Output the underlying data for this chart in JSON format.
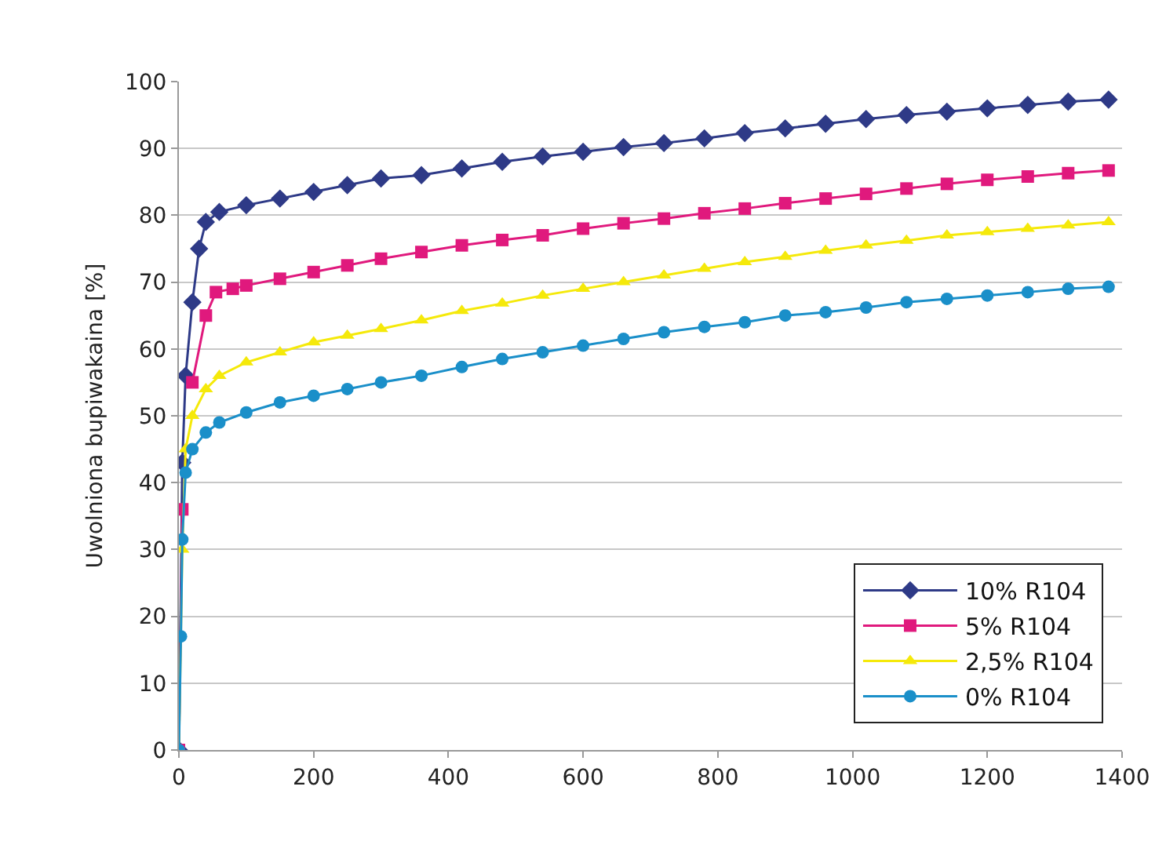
{
  "chart_data": {
    "type": "line",
    "ylabel": "Uwolniona bupiwakaina [%]",
    "xlim": [
      0,
      1400
    ],
    "xticks": [
      0,
      200,
      400,
      600,
      800,
      1000,
      1200,
      1400
    ],
    "ylim": [
      0,
      100
    ],
    "yticks": [
      0,
      10,
      20,
      30,
      40,
      50,
      60,
      70,
      80,
      90,
      100
    ],
    "grid": "y",
    "legend": "bottom right",
    "series": [
      {
        "name": "10% R104",
        "color": "#2e3a87",
        "marker": "diamond",
        "x": [
          0,
          5,
          10,
          20,
          30,
          40,
          60,
          100,
          150,
          200,
          250,
          300,
          360,
          420,
          480,
          540,
          600,
          660,
          720,
          780,
          840,
          900,
          960,
          1020,
          1080,
          1140,
          1200,
          1260,
          1320,
          1380
        ],
        "values": [
          0,
          43,
          56,
          67,
          75,
          79,
          80.5,
          81.5,
          82.5,
          83.5,
          84.5,
          85.5,
          86,
          87,
          88,
          88.8,
          89.5,
          90.2,
          90.8,
          91.5,
          92.3,
          93,
          93.7,
          94.4,
          95,
          95.5,
          96,
          96.5,
          97,
          97.3
        ]
      },
      {
        "name": "5% R104",
        "color": "#e0197d",
        "marker": "square",
        "x": [
          0,
          5,
          10,
          20,
          40,
          55,
          80,
          100,
          150,
          200,
          250,
          300,
          360,
          420,
          480,
          540,
          600,
          660,
          720,
          780,
          840,
          900,
          960,
          1020,
          1080,
          1140,
          1200,
          1260,
          1320,
          1380
        ],
        "values": [
          0,
          36,
          null,
          55,
          65,
          68.5,
          69,
          69.5,
          70.5,
          71.5,
          72.5,
          73.5,
          74.5,
          75.5,
          76.3,
          77,
          78,
          78.8,
          79.5,
          80.3,
          81,
          81.8,
          82.5,
          83.2,
          84,
          84.7,
          85.3,
          85.8,
          86.3,
          86.7
        ]
      },
      {
        "name": "2,5% R104",
        "color": "#f5e90a",
        "marker": "triangle",
        "x": [
          0,
          5,
          10,
          20,
          40,
          60,
          100,
          150,
          200,
          250,
          300,
          360,
          420,
          480,
          540,
          600,
          660,
          720,
          780,
          840,
          900,
          960,
          1020,
          1080,
          1140,
          1200,
          1260,
          1320,
          1380
        ],
        "values": [
          0,
          30,
          45,
          50,
          54,
          56,
          58,
          59.5,
          61,
          62,
          63,
          64.3,
          65.7,
          66.8,
          68,
          69,
          70,
          71,
          72,
          73,
          73.8,
          74.7,
          75.5,
          76.2,
          77,
          77.5,
          78,
          78.5,
          79
        ]
      },
      {
        "name": "0% R104",
        "color": "#1a8fc9",
        "marker": "circle",
        "x": [
          0,
          3,
          5,
          10,
          20,
          40,
          60,
          100,
          150,
          200,
          250,
          300,
          360,
          420,
          480,
          540,
          600,
          660,
          720,
          780,
          840,
          900,
          960,
          1020,
          1080,
          1140,
          1200,
          1260,
          1320,
          1380
        ],
        "values": [
          0,
          17,
          31.5,
          41.5,
          45,
          47.5,
          49,
          50.5,
          52,
          53,
          54,
          55,
          56,
          57.3,
          58.5,
          59.5,
          60.5,
          61.5,
          62.5,
          63.3,
          64,
          65,
          65.5,
          66.2,
          67,
          67.5,
          68,
          68.5,
          69,
          69.3
        ]
      }
    ]
  }
}
